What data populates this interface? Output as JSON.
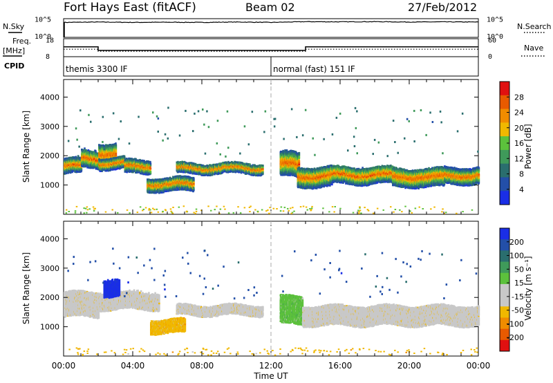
{
  "header": {
    "title": "Fort Hays East (fitACF)",
    "beam": "Beam 02",
    "date": "27/Feb/2012"
  },
  "left_labels": {
    "nsky": "N.Sky",
    "freq_line1": "Freq.",
    "freq_line2": "[MHz]",
    "cpid": "CPID"
  },
  "right_labels": {
    "nsearch": "N.Search",
    "nave": "Nave"
  },
  "colors": {
    "power_scale": [
      "#1a2ee6",
      "#234fa8",
      "#2a6e6e",
      "#3f9a5a",
      "#5cc13c",
      "#f0b800",
      "#f08c00",
      "#e85a00",
      "#e01010"
    ],
    "velocity_scale": [
      "#e01010",
      "#e85a00",
      "#f08c00",
      "#f0b800",
      "#c8c8c8",
      "#c8c8c8",
      "#5cc13c",
      "#3f9a5a",
      "#2a6e6e",
      "#234fa8",
      "#1a2ee6"
    ]
  },
  "chart_data": [
    {
      "type": "line",
      "name": "noise-panel",
      "title": "N.Sky",
      "right_title": "N.Search",
      "yticks_left": [
        "10^5",
        "10^0"
      ],
      "yticks_right": [
        "10^5",
        "10^0"
      ],
      "x_hours": [
        0,
        2,
        4,
        6,
        8,
        10,
        12,
        14,
        16,
        18,
        20,
        22,
        24
      ],
      "nsky_log": [
        4.0,
        4.1,
        4.0,
        4.05,
        4.0,
        4.1,
        4.0,
        4.2,
        4.15,
        4.2,
        4.1,
        4.15,
        4.1
      ]
    },
    {
      "type": "line",
      "name": "freq-panel",
      "title": "Freq. [MHz]",
      "right_title": "Nave",
      "yticks_left": [
        "18",
        "8"
      ],
      "yticks_right": [
        "60",
        "0"
      ],
      "freq_steps": [
        {
          "start": 0.0,
          "end": 2.0,
          "value": 13.5
        },
        {
          "start": 2.0,
          "end": 14.0,
          "value": 11.5
        },
        {
          "start": 14.0,
          "end": 24.0,
          "value": 13.5
        }
      ],
      "nave_steps": [
        {
          "start": 0.0,
          "end": 2.0,
          "value": 25
        },
        {
          "start": 2.0,
          "end": 14.0,
          "value": 18
        },
        {
          "start": 14.0,
          "end": 24.0,
          "value": 25
        }
      ],
      "ylim_freq": [
        8,
        18
      ],
      "ylim_nave": [
        0,
        60
      ]
    },
    {
      "type": "table",
      "name": "cpid-panel",
      "title": "CPID",
      "segments": [
        {
          "start": 0.0,
          "end": 12.0,
          "label": "themis 3300 IF"
        },
        {
          "start": 12.0,
          "end": 24.0,
          "label": "normal (fast) 151 IF"
        }
      ]
    },
    {
      "type": "heatmap",
      "name": "power-panel",
      "ylabel": "Slant Range [km]",
      "ylim": [
        0,
        4600
      ],
      "yticks": [
        1000,
        2000,
        3000,
        4000
      ],
      "xlim": [
        0,
        24
      ],
      "colorbar_label": "Power [dB]",
      "colorbar_ticks": [
        "28",
        "24",
        "20",
        "16",
        "12",
        "8",
        "4"
      ],
      "bands": [
        {
          "start": 0.0,
          "end": 1.0,
          "low": 1400,
          "high": 1850
        },
        {
          "start": 1.0,
          "end": 2.0,
          "low": 1600,
          "high": 2150
        },
        {
          "start": 2.0,
          "end": 3.0,
          "low": 1700,
          "high": 2400
        },
        {
          "start": 2.0,
          "end": 3.5,
          "low": 1550,
          "high": 1900
        },
        {
          "start": 3.5,
          "end": 5.0,
          "low": 1400,
          "high": 1800
        },
        {
          "start": 4.8,
          "end": 7.5,
          "low": 800,
          "high": 1200
        },
        {
          "start": 6.5,
          "end": 11.5,
          "low": 1400,
          "high": 1700
        },
        {
          "start": 12.5,
          "end": 13.6,
          "low": 1300,
          "high": 2100
        },
        {
          "start": 13.5,
          "end": 15.5,
          "low": 950,
          "high": 1600
        },
        {
          "start": 15.5,
          "end": 19.0,
          "low": 1050,
          "high": 1600
        },
        {
          "start": 19.0,
          "end": 22.0,
          "low": 950,
          "high": 1550
        },
        {
          "start": 22.0,
          "end": 24.0,
          "low": 1050,
          "high": 1550
        }
      ]
    },
    {
      "type": "heatmap",
      "name": "velocity-panel",
      "ylabel": "Slant Range [km]",
      "xlabel": "Time UT",
      "ylim": [
        0,
        4600
      ],
      "yticks": [
        1000,
        2000,
        3000,
        4000
      ],
      "xlim": [
        0,
        24
      ],
      "xticks": [
        "00:00",
        "04:00",
        "08:00",
        "12:00",
        "16:00",
        "20:00",
        "00:00"
      ],
      "colorbar_label": "Velocity [m s⁻¹]",
      "colorbar_ticks": [
        "200",
        "100",
        "50",
        "15",
        "-15",
        "-50",
        "-100",
        "-200"
      ],
      "bands": [
        {
          "start": 0.0,
          "end": 2.0,
          "low": 1350,
          "high": 2150,
          "color_index": 4
        },
        {
          "start": 2.0,
          "end": 5.5,
          "low": 1600,
          "high": 2150,
          "color_index": 4
        },
        {
          "start": 2.3,
          "end": 3.2,
          "low": 2050,
          "high": 2600,
          "color_index": 10
        },
        {
          "start": 5.0,
          "end": 7.0,
          "low": 800,
          "high": 1200,
          "color_index": 3
        },
        {
          "start": 6.5,
          "end": 11.5,
          "low": 1400,
          "high": 1700,
          "color_index": 4
        },
        {
          "start": 12.5,
          "end": 13.8,
          "low": 1100,
          "high": 2000,
          "color_index": 6
        },
        {
          "start": 13.8,
          "end": 24.0,
          "low": 1050,
          "high": 1700,
          "color_index": 4
        }
      ]
    }
  ]
}
